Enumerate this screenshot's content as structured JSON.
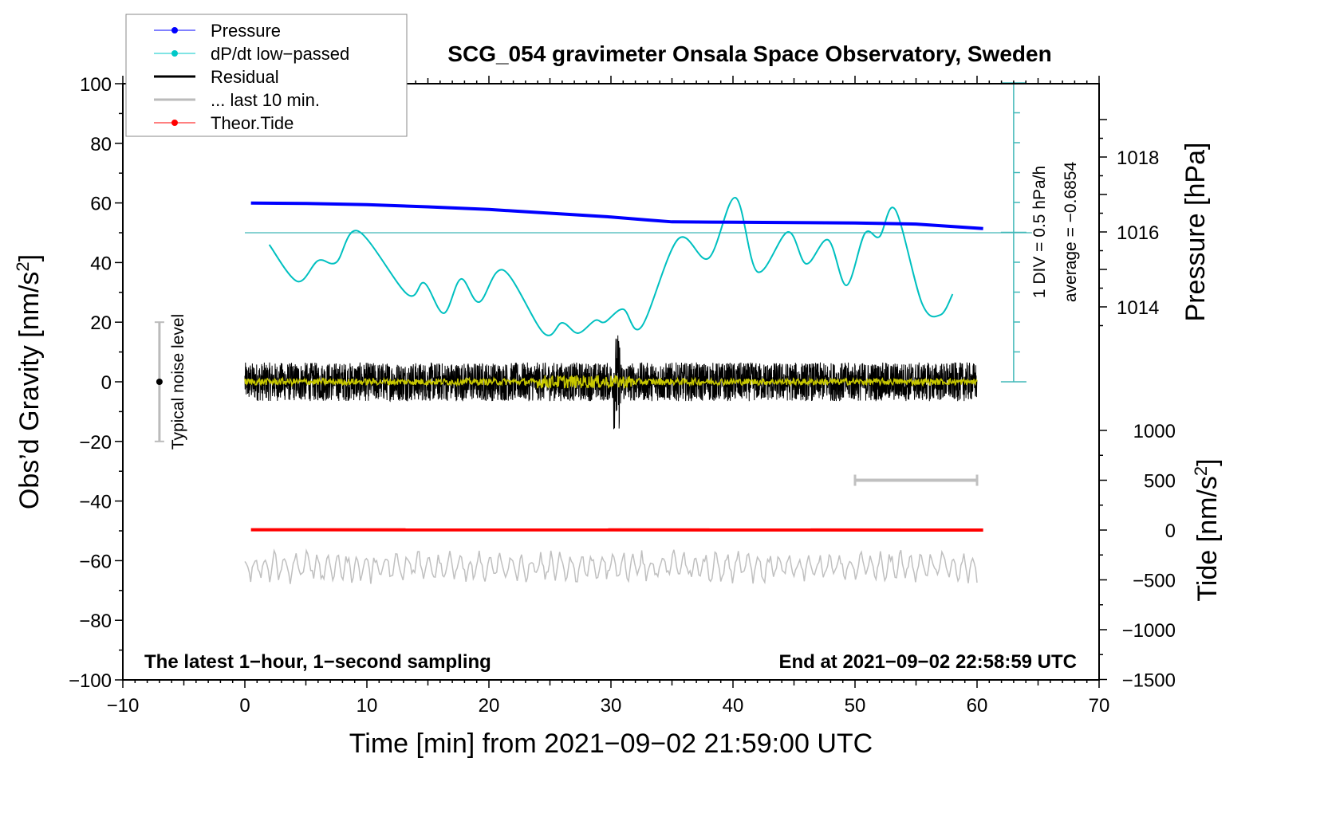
{
  "chart_data": {
    "type": "line",
    "title": "SCG_054 gravimeter Onsala Space Observatory, Sweden",
    "xlabel": "Time [min] from 2021−09−02 21:59:00 UTC",
    "ylabel_left": "Obs’d Gravity [nm/s",
    "ylabel_left_sup": "2",
    "ylabel_left_end": "]",
    "ylabel_pressure": "Pressure [hPa]",
    "ylabel_tide": "Tide [nm/s",
    "ylabel_tide_sup": "2",
    "ylabel_tide_end": "]",
    "xlim": [
      -10,
      70
    ],
    "ylim": [
      -100,
      100
    ],
    "pressure_lim": [
      1014,
      1018
    ],
    "tide_lim": [
      -1500,
      1000
    ],
    "x_ticks": [
      "−10",
      "0",
      "10",
      "20",
      "30",
      "40",
      "50",
      "60",
      "70"
    ],
    "y_ticks": [
      "100",
      "80",
      "60",
      "40",
      "20",
      "0",
      "−20",
      "−40",
      "−60",
      "−80",
      "−100"
    ],
    "pressure_ticks": [
      "1018",
      "1016",
      "1014"
    ],
    "tide_ticks": [
      "1000",
      "500",
      "0",
      "−500",
      "−1000",
      "−1500"
    ],
    "legend": {
      "placement": "top-left",
      "entries": [
        {
          "label": "Pressure",
          "color": "#0000ff",
          "marker": "dot"
        },
        {
          "label": "dP/dt low−passed",
          "color": "#00c8c8",
          "marker": "dot"
        },
        {
          "label": "Residual",
          "color": "#000000",
          "marker": "line"
        },
        {
          "label": "... last 10 min.",
          "color": "#bbbbbb",
          "marker": "line"
        },
        {
          "label": "Theor.Tide",
          "color": "#ff0000",
          "marker": "dot"
        }
      ]
    },
    "series": {
      "pressure_hPa": {
        "x": [
          0.5,
          5,
          10,
          15,
          20,
          25,
          30,
          33,
          35,
          40,
          45,
          50,
          55,
          60.5
        ],
        "y": [
          1016.77,
          1016.76,
          1016.73,
          1016.67,
          1016.6,
          1016.5,
          1016.4,
          1016.32,
          1016.27,
          1016.26,
          1016.25,
          1016.24,
          1016.21,
          1016.09
        ]
      },
      "dpdt_hPa_per_h": {
        "x": [
          2,
          4.3,
          6,
          7.5,
          9.3,
          13.3,
          14.7,
          16.3,
          17.7,
          19.2,
          21.2,
          24.5,
          26,
          27.3,
          28.7,
          29.5,
          31,
          32.5,
          35.5,
          38,
          40.2,
          42,
          44.5,
          46,
          47.8,
          49.3,
          50.8,
          52,
          53.3,
          55.5,
          57,
          58
        ],
        "y": [
          -0.885,
          -1.499,
          -1.152,
          -1.179,
          -0.659,
          -1.712,
          -1.525,
          -2.032,
          -1.459,
          -1.845,
          -1.312,
          -2.365,
          -2.192,
          -2.365,
          -2.152,
          -2.179,
          -1.965,
          -2.259,
          -0.792,
          -1.112,
          -0.099,
          -1.339,
          -0.672,
          -1.205,
          -0.805,
          -1.565,
          -0.699,
          -0.752,
          -0.299,
          -1.872,
          -2.059,
          -1.712
        ]
      },
      "theor_tide_nm_s2": {
        "x": [
          0.5,
          60.5
        ],
        "y": [
          3,
          0
        ]
      },
      "residual": {
        "x_range": [
          0,
          60
        ],
        "offset": 0,
        "approx_amplitude": 5
      },
      "last_10_min": {
        "x_range": [
          0,
          60
        ],
        "offset": -62,
        "approx_amplitude": 5
      }
    },
    "dpdt_scale": {
      "div_label": "1 DIV = 0.5 hPa/h",
      "average_label": "average = −0.6854",
      "average": -0.6854,
      "per_div": 0.5,
      "center_gravity": 50,
      "divs": 10
    },
    "tide_scale_bar": {
      "x": [
        50,
        60
      ],
      "tide": 500
    },
    "noise": {
      "label": "Typical noise level",
      "x": -7,
      "range": [
        -20,
        20
      ]
    },
    "annotation_left": "The latest 1−hour, 1−second sampling",
    "annotation_right": "End at 2021−09−02 22:58:59 UTC"
  }
}
